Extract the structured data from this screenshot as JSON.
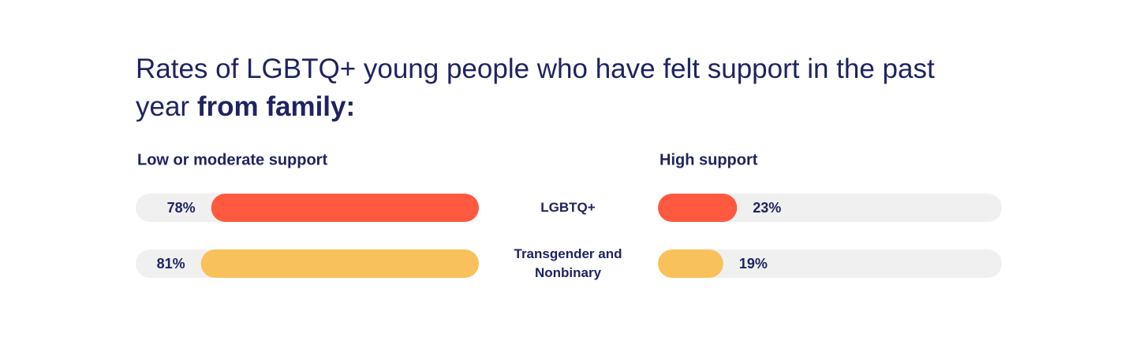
{
  "chart_data": {
    "type": "diverging-bar",
    "title": "Rates of LGBTQ+ young people who have felt support in the past year",
    "title_emphasis": "from family:",
    "categories": [
      "LGBTQ+",
      "Transgender and Nonbinary"
    ],
    "colors": [
      "#ff5a40",
      "#f8c15b"
    ],
    "xlim": [
      0,
      100
    ],
    "series": [
      {
        "name": "Low or moderate support",
        "values": [
          78,
          81
        ],
        "value_labels": [
          "78%",
          "81%"
        ]
      },
      {
        "name": "High support",
        "values": [
          23,
          19
        ],
        "value_labels": [
          "23%",
          "19%"
        ]
      }
    ]
  }
}
